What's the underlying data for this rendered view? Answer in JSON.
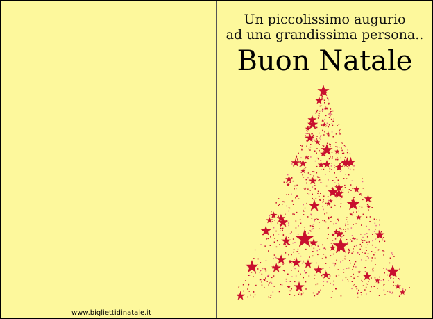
{
  "card": {
    "greeting_line1": "Un piccolissimo augurio",
    "greeting_line2": "ad una grandissima persona..",
    "title": "Buon Natale",
    "website": "www.bigliettidinatale.it",
    "colors": {
      "background": "#fdf89c",
      "stars": "#c8102e",
      "text": "#000000"
    },
    "illustration": "christmas-tree-of-stars"
  }
}
